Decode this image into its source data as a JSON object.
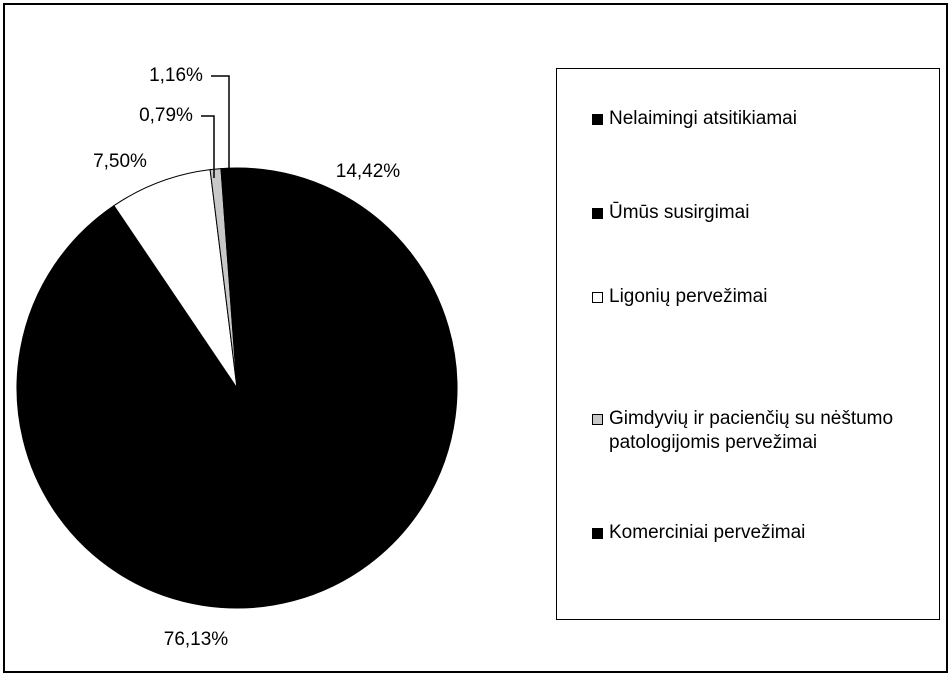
{
  "chart_data": {
    "type": "pie",
    "categories": [
      "Nelaimingi atsitikiamai",
      "Ūmūs susirgimai",
      "Ligonių pervežimai",
      "Gimdyvių ir pacienčių su nėštumo patologijomis pervežimai",
      "Komerciniai pervežimai"
    ],
    "values": [
      14.42,
      76.13,
      7.5,
      0.79,
      1.16
    ],
    "value_labels": [
      "14,42%",
      "76,13%",
      "7,50%",
      "0,79%",
      "1,16%"
    ],
    "colors": [
      "#000000",
      "#000000",
      "#ffffff",
      "#c8c8c8",
      "#000000"
    ],
    "legend": "right"
  }
}
